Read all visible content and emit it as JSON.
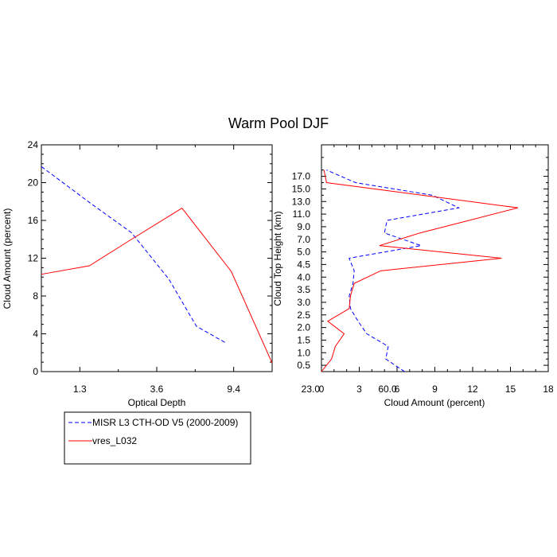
{
  "figure_title": "Warm Pool DJF",
  "colors": {
    "misr": "#0000ff",
    "model": "#ff0000"
  },
  "legend": {
    "entries": [
      {
        "label": "MISR L3 CTH-OD V5 (2000-2009)",
        "color": "#0000ff",
        "dash": "dashed"
      },
      {
        "label": "vres_L032",
        "color": "#ff0000",
        "dash": "solid"
      }
    ]
  },
  "chart_data": [
    {
      "type": "line",
      "title": "",
      "xlabel": "Optical Depth",
      "ylabel": "Cloud Amount (percent)",
      "x_tick_labels": [
        "1.3",
        "3.6",
        "9.4",
        "23.0",
        "60.0"
      ],
      "x_positions": [
        0,
        1,
        2,
        3,
        4,
        5,
        6
      ],
      "xlim": [
        0,
        6
      ],
      "ylim": [
        0,
        24
      ],
      "y_ticks": [
        0,
        4,
        8,
        12,
        16,
        20,
        24
      ],
      "series": [
        {
          "name": "MISR L3 CTH-OD V5 (2000-2009)",
          "values": [
            21.7,
            17.9,
            14.7,
            9.8,
            4.8,
            3.0
          ]
        },
        {
          "name": "vres_L032",
          "values": [
            10.3,
            11.2,
            14.0,
            17.3,
            10.6,
            0.9
          ]
        }
      ]
    },
    {
      "type": "line",
      "title": "",
      "xlabel": "Cloud Amount (percent)",
      "ylabel": "Cloud Top Height (km)",
      "xlim": [
        0,
        18
      ],
      "x_ticks": [
        0,
        3,
        6,
        9,
        12,
        15,
        18
      ],
      "ylim": [
        0,
        18
      ],
      "y_tick_labels": [
        "0.5",
        "1.0",
        "1.5",
        "2.0",
        "2.5",
        "3.0",
        "3.5",
        "4.0",
        "4.5",
        "5.0",
        "7.0",
        "9.0",
        "11.0",
        "13.0",
        "15.0",
        "17.0"
      ],
      "series": [
        {
          "name": "MISR L3 CTH-OD V5 (2000-2009)",
          "values": [
            6.6,
            5.1,
            5.3,
            3.6,
            2.9,
            2.3,
            2.2,
            2.5,
            2.6,
            2.2,
            7.9,
            5.0,
            5.2,
            10.9,
            8.8,
            2.7,
            0.4
          ]
        },
        {
          "name": "vres_L032",
          "values": [
            0.0,
            0.8,
            1.1,
            1.8,
            0.5,
            2.2,
            2.3,
            2.6,
            4.7,
            14.3,
            4.6,
            7.8,
            15.6,
            0.4,
            0.2
          ]
        }
      ],
      "series_y": [
        [
          0.0,
          1.0,
          2.0,
          3.0,
          4.0,
          5.0,
          6.0,
          7.0,
          8.0,
          9.0,
          10.0,
          11.0,
          12.0,
          13.0,
          14.0,
          15.0,
          16.0
        ],
        [
          0.0,
          1.0,
          2.0,
          3.0,
          4.0,
          5.0,
          6.0,
          7.0,
          8.0,
          9.0,
          10.0,
          11.0,
          13.0,
          15.0,
          16.0
        ]
      ]
    }
  ]
}
